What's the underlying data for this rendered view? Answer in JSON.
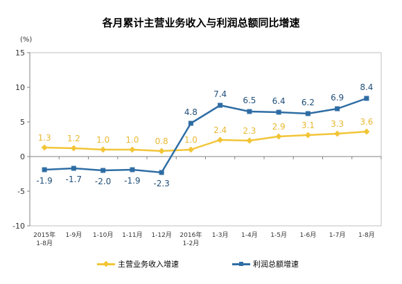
{
  "chart_data": {
    "type": "line",
    "title": "各月累计主营业务收入与利润总额同比增速",
    "ylabel": "(%)",
    "xlabel": "",
    "ylim": [
      -10,
      15
    ],
    "yticks": [
      "-10",
      "-5",
      "0",
      "5",
      "10",
      "15"
    ],
    "categories": [
      [
        "2015年",
        "1-8月"
      ],
      [
        "1-9月"
      ],
      [
        "1-10月"
      ],
      [
        "1-11月"
      ],
      [
        "1-12月"
      ],
      [
        "2016年",
        "1-2月"
      ],
      [
        "1-3月"
      ],
      [
        "1-4月"
      ],
      [
        "1-5月"
      ],
      [
        "1-6月"
      ],
      [
        "1-7月"
      ],
      [
        "1-8月"
      ]
    ],
    "series": [
      {
        "name": "主营业务收入增速",
        "color": "#f2c537",
        "label_color": "#e8b830",
        "marker": "diamond",
        "values": [
          1.3,
          1.2,
          1.0,
          1.0,
          0.8,
          1.0,
          2.4,
          2.3,
          2.9,
          3.1,
          3.3,
          3.6
        ],
        "labels": [
          "1.3",
          "1.2",
          "1.0",
          "1.0",
          "0.8",
          "1.0",
          "2.4",
          "2.3",
          "2.9",
          "3.1",
          "3.3",
          "3.6"
        ]
      },
      {
        "name": "利润总额增速",
        "color": "#2e6da4",
        "label_color": "#1f4e79",
        "marker": "square",
        "values": [
          -1.9,
          -1.7,
          -2.0,
          -1.9,
          -2.3,
          4.8,
          7.4,
          6.5,
          6.4,
          6.2,
          6.9,
          8.4
        ],
        "labels": [
          "-1.9",
          "-1.7",
          "-2.0",
          "-1.9",
          "-2.3",
          "4.8",
          "7.4",
          "6.5",
          "6.4",
          "6.2",
          "6.9",
          "8.4"
        ]
      }
    ],
    "grid": false,
    "legend_position": "bottom"
  }
}
